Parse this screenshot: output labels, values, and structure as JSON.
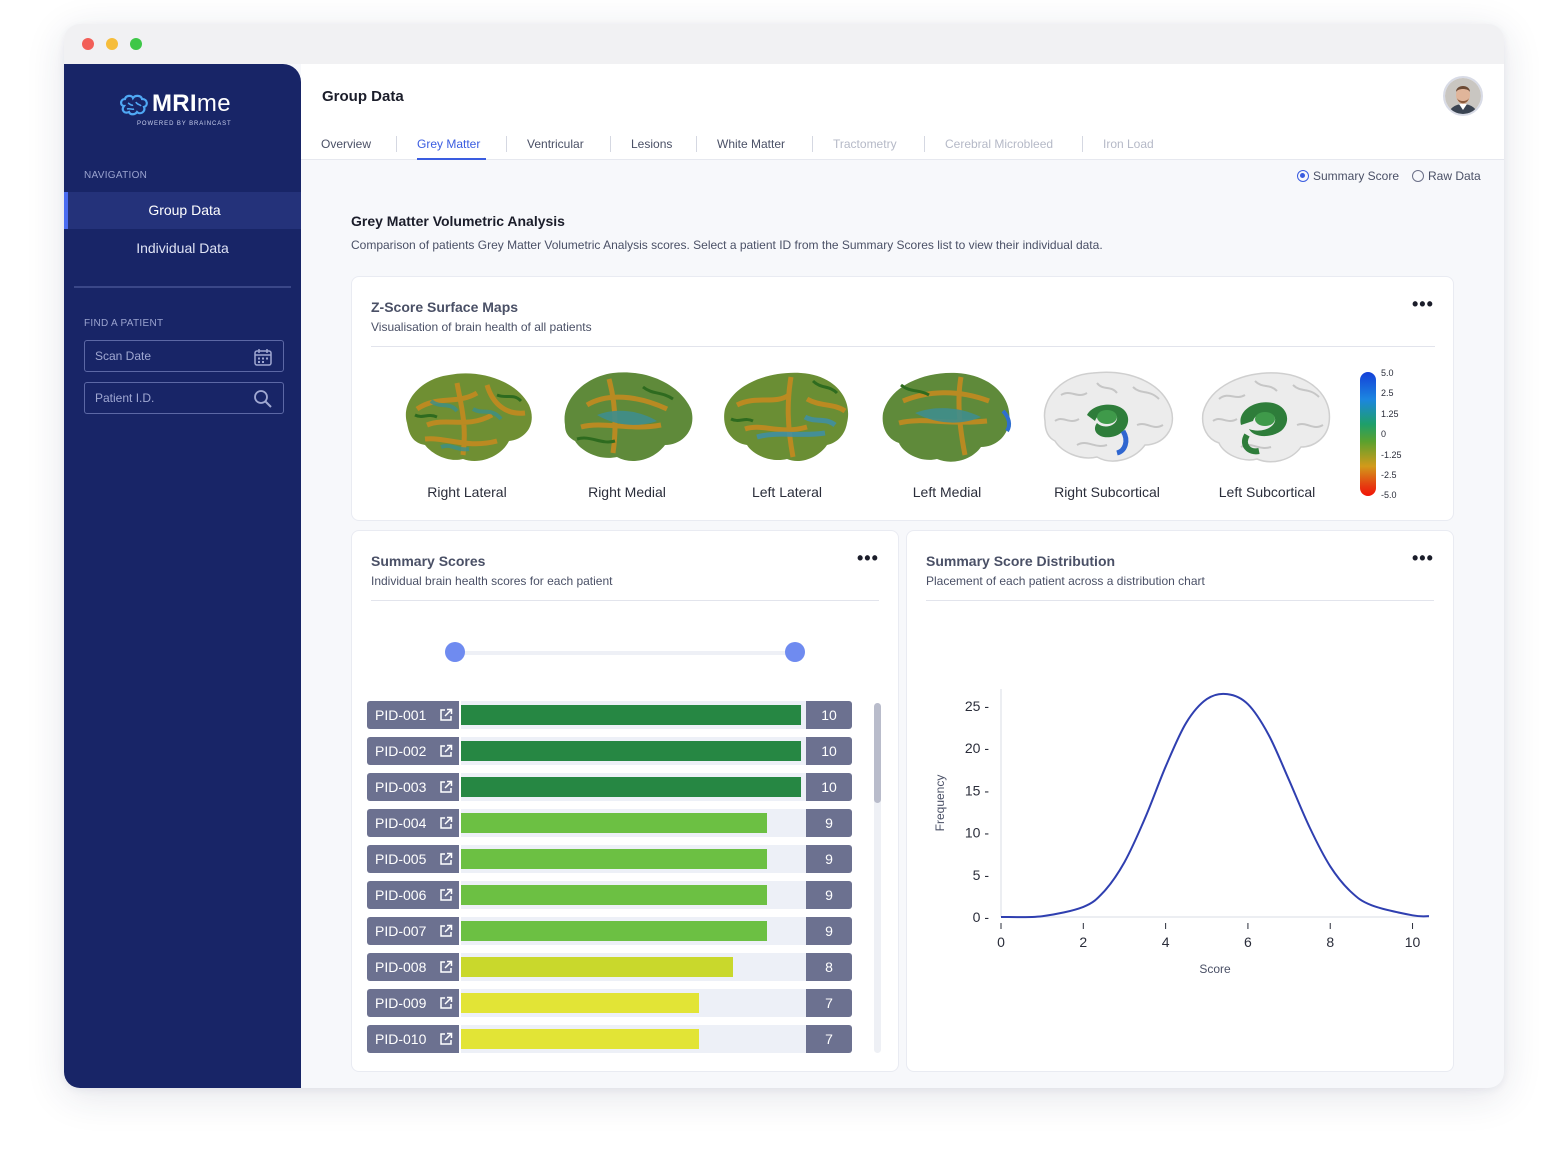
{
  "app": {
    "logo_bold": "MRI",
    "logo_light": "me",
    "logo_sub": "POWERED BY BRAINCAST"
  },
  "sidebar": {
    "nav_heading": "NAVIGATION",
    "items": [
      {
        "label": "Group Data",
        "active": true
      },
      {
        "label": "Individual Data",
        "active": false
      }
    ],
    "find_heading": "FIND A PATIENT",
    "scan_date_placeholder": "Scan Date",
    "patient_id_placeholder": "Patient I.D."
  },
  "header": {
    "title": "Group Data",
    "tabs": [
      {
        "label": "Overview",
        "state": "normal"
      },
      {
        "label": "Grey Matter",
        "state": "active"
      },
      {
        "label": "Ventricular",
        "state": "normal"
      },
      {
        "label": "Lesions",
        "state": "normal"
      },
      {
        "label": "White Matter",
        "state": "normal"
      },
      {
        "label": "Tractometry",
        "state": "disabled"
      },
      {
        "label": "Cerebral Microbleed",
        "state": "disabled"
      },
      {
        "label": "Iron Load",
        "state": "disabled"
      }
    ]
  },
  "view_toggle": {
    "summary_label": "Summary Score",
    "raw_label": "Raw Data",
    "selected": "summary"
  },
  "section": {
    "title": "Grey Matter Volumetric Analysis",
    "description": "Comparison of patients Grey Matter Volumetric Analysis scores. Select a patient ID from the Summary Scores list to view their individual data."
  },
  "surface_maps": {
    "title": "Z-Score Surface Maps",
    "subtitle": "Visualisation of brain health of all patients",
    "views": [
      {
        "label": "Right Lateral",
        "kind": "surface"
      },
      {
        "label": "Right Medial",
        "kind": "surface"
      },
      {
        "label": "Left Lateral",
        "kind": "surface"
      },
      {
        "label": "Left Medial",
        "kind": "surface"
      },
      {
        "label": "Right Subcortical",
        "kind": "subcortical"
      },
      {
        "label": "Left Subcortical",
        "kind": "subcortical"
      }
    ],
    "colorbar_ticks": [
      "5.0",
      "2.5",
      "1.25",
      "0",
      "-1.25",
      "-2.5",
      "-5.0"
    ]
  },
  "summary_scores": {
    "title": "Summary Scores",
    "subtitle": "Individual brain health scores for each patient",
    "max_score": 10,
    "rows": [
      {
        "pid": "PID-001",
        "score": 10,
        "color": "#268743"
      },
      {
        "pid": "PID-002",
        "score": 10,
        "color": "#268743"
      },
      {
        "pid": "PID-003",
        "score": 10,
        "color": "#268743"
      },
      {
        "pid": "PID-004",
        "score": 9,
        "color": "#6cc043"
      },
      {
        "pid": "PID-005",
        "score": 9,
        "color": "#6cc043"
      },
      {
        "pid": "PID-006",
        "score": 9,
        "color": "#6cc043"
      },
      {
        "pid": "PID-007",
        "score": 9,
        "color": "#6cc043"
      },
      {
        "pid": "PID-008",
        "score": 8,
        "color": "#c9d82c"
      },
      {
        "pid": "PID-009",
        "score": 7,
        "color": "#e2e436"
      },
      {
        "pid": "PID-010",
        "score": 7,
        "color": "#e2e436"
      }
    ]
  },
  "distribution": {
    "title": "Summary Score Distribution",
    "subtitle": "Placement of each patient across a distribution chart"
  },
  "chart_data": {
    "type": "line",
    "xlabel": "Score",
    "ylabel": "Frequency",
    "xlim": [
      0,
      10.4
    ],
    "ylim": [
      0,
      27
    ],
    "xticks": [
      0,
      2,
      4,
      6,
      8,
      10
    ],
    "yticks": [
      0,
      5,
      10,
      15,
      20,
      25
    ],
    "color": "#2f3fb0",
    "series": [
      {
        "x": [
          0,
          1,
          2,
          2.5,
          3,
          3.5,
          4,
          4.5,
          5,
          5.5,
          6,
          6.5,
          7,
          7.5,
          8,
          8.5,
          9,
          10,
          10.4
        ],
        "y": [
          0,
          0.1,
          1.2,
          3,
          6.5,
          11.7,
          17.8,
          23,
          25.8,
          26.4,
          25.2,
          21.6,
          16.2,
          10.6,
          6,
          3,
          1.4,
          0.2,
          0.1
        ]
      }
    ]
  },
  "colors": {
    "sidebar": "#182567",
    "accent": "#3a5ce0",
    "bar_label": "#6c7190"
  }
}
